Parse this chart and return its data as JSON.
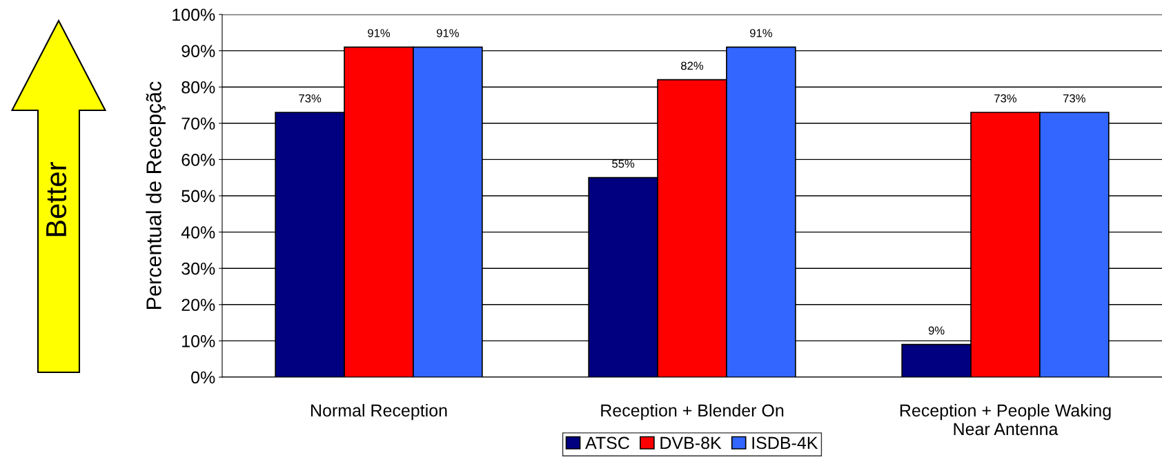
{
  "chart_data": {
    "type": "bar",
    "ylabel": "Percentual de Recepçãc",
    "categories": [
      "Normal Reception",
      "Reception + Blender On",
      "Reception + People Waking\nNear Antenna"
    ],
    "series": [
      {
        "name": "ATSC",
        "color": "#000080",
        "values": [
          73,
          55,
          9
        ],
        "value_labels": [
          "73%",
          "55%",
          "9%"
        ]
      },
      {
        "name": "DVB-8K",
        "color": "#ff0000",
        "values": [
          91,
          82,
          73
        ],
        "value_labels": [
          "91%",
          "82%",
          "73%"
        ]
      },
      {
        "name": "ISDB-4K",
        "color": "#3366ff",
        "values": [
          91,
          91,
          73
        ],
        "value_labels": [
          "91%",
          "91%",
          "73%"
        ]
      }
    ],
    "ylim": [
      0,
      100
    ],
    "yticks": [
      {
        "value": 0,
        "label": "0%"
      },
      {
        "value": 10,
        "label": "10%"
      },
      {
        "value": 20,
        "label": "20%"
      },
      {
        "value": 30,
        "label": "30%"
      },
      {
        "value": 40,
        "label": "40%"
      },
      {
        "value": 50,
        "label": "50%"
      },
      {
        "value": 60,
        "label": "60%"
      },
      {
        "value": 70,
        "label": "70%"
      },
      {
        "value": 80,
        "label": "80%"
      },
      {
        "value": 90,
        "label": "90%"
      },
      {
        "value": 100,
        "label": "100%"
      }
    ],
    "grid": "y",
    "legend": "bottom",
    "annotations": [
      "Better"
    ]
  }
}
